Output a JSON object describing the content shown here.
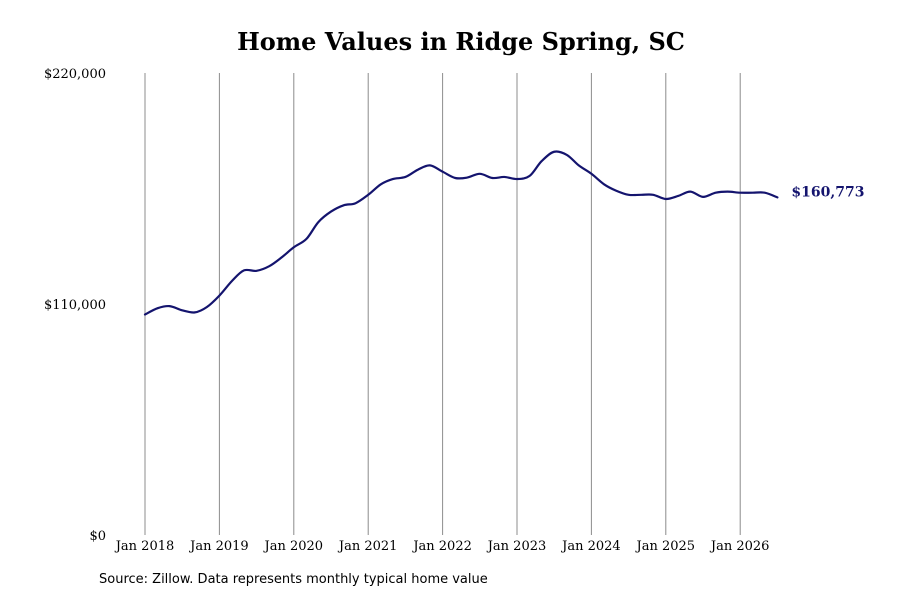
{
  "chart_data": {
    "type": "line",
    "title": "Home Values in Ridge Spring, SC",
    "xlabel": "",
    "ylabel": "",
    "ylim": [
      0,
      220000
    ],
    "y_ticks": [
      {
        "value": 0,
        "label": "$0"
      },
      {
        "value": 110000,
        "label": "$110,000"
      },
      {
        "value": 220000,
        "label": "$220,000"
      }
    ],
    "x_ticks": [
      {
        "value": 2018,
        "label": "Jan 2018"
      },
      {
        "value": 2019,
        "label": "Jan 2019"
      },
      {
        "value": 2020,
        "label": "Jan 2020"
      },
      {
        "value": 2021,
        "label": "Jan 2021"
      },
      {
        "value": 2022,
        "label": "Jan 2022"
      },
      {
        "value": 2023,
        "label": "Jan 2023"
      },
      {
        "value": 2024,
        "label": "Jan 2024"
      },
      {
        "value": 2025,
        "label": "Jan 2025"
      },
      {
        "value": 2026,
        "label": "Jan 2026"
      }
    ],
    "xlim": [
      2018,
      2026.5
    ],
    "grid": "vertical",
    "line_color": "#14146e",
    "series": [
      {
        "x": [
          2018.0,
          2018.17,
          2018.33,
          2018.5,
          2018.67,
          2018.83,
          2019.0,
          2019.17,
          2019.33,
          2019.5,
          2019.67,
          2019.83,
          2020.0,
          2020.17,
          2020.33,
          2020.5,
          2020.67,
          2020.83,
          2021.0,
          2021.17,
          2021.33,
          2021.5,
          2021.67,
          2021.83,
          2022.0,
          2022.17,
          2022.33,
          2022.5,
          2022.67,
          2022.83,
          2023.0,
          2023.17,
          2023.33,
          2023.5,
          2023.67,
          2023.83,
          2024.0,
          2024.17,
          2024.33,
          2024.5,
          2024.67,
          2024.83,
          2025.0,
          2025.17,
          2025.33,
          2025.5,
          2025.67,
          2025.83,
          2026.0,
          2026.17,
          2026.33,
          2026.5
        ],
        "y": [
          105000,
          108000,
          109000,
          107000,
          106000,
          108500,
          114000,
          121000,
          126000,
          125800,
          128000,
          132000,
          137000,
          141000,
          149000,
          154000,
          157000,
          158000,
          162000,
          167000,
          169500,
          170500,
          174000,
          176000,
          173000,
          170000,
          170200,
          172000,
          170000,
          170500,
          169500,
          171000,
          178000,
          182500,
          181000,
          176000,
          172000,
          167000,
          164000,
          162000,
          162000,
          162000,
          160000,
          161500,
          163500,
          161000,
          163000,
          163500,
          163000,
          163000,
          163000,
          160773
        ]
      }
    ],
    "end_label": "$160,773",
    "source": "Source: Zillow. Data represents monthly typical home value"
  }
}
